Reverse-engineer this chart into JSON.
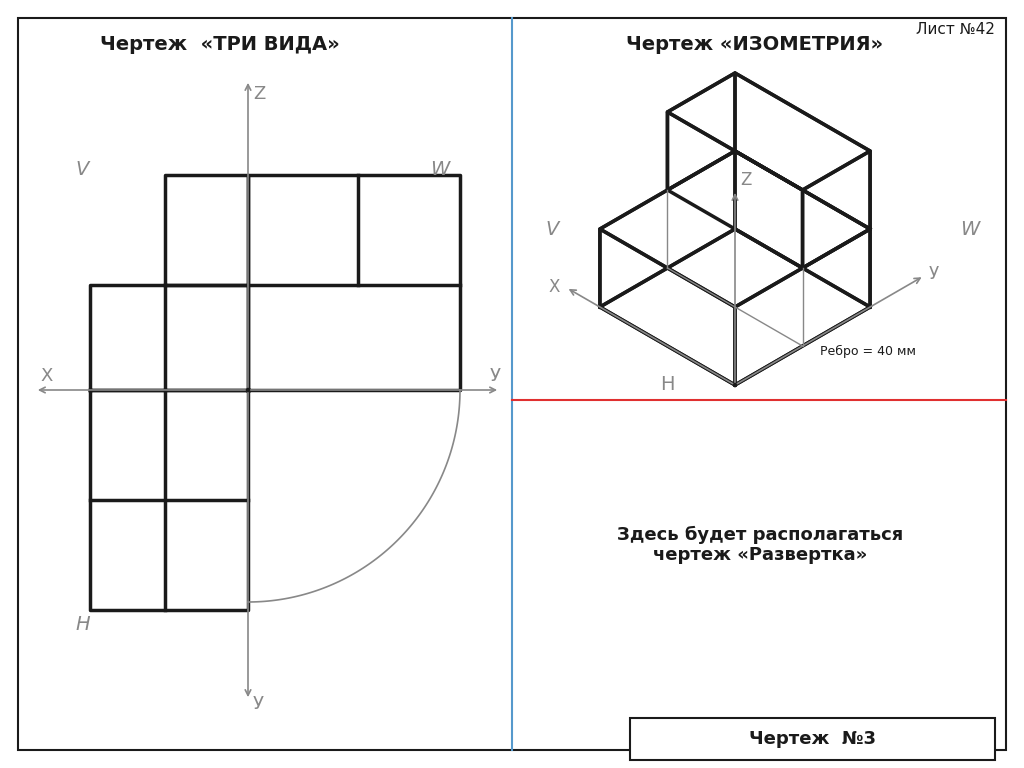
{
  "title_left": "Чертеж  «ТРИ ВИДА»",
  "title_right": "Чертеж «ИЗОМЕТРИЯ»",
  "title_sheet": "Лист №42",
  "label_V_left": "V",
  "label_W_left": "W",
  "label_H_left": "Н",
  "label_X_left": "X",
  "label_Y_left_h": "У",
  "label_Y_left_v": "У",
  "label_Z_left": "Z",
  "label_V_right": "V",
  "label_W_right": "W",
  "label_H_right": "Н",
  "label_X_right": "X",
  "label_Y_right": "У",
  "label_Z_right": "Z",
  "rebro_text": "Ребро = 40 мм",
  "razvortka_text": "Здесь будет располагаться\nчертеж «Развертка»",
  "chertezh_no": "Чертеж  №3",
  "bg_color": "#ffffff",
  "line_color": "#1a1a1a",
  "axis_color": "#888888",
  "red_line_color": "#e03030",
  "blue_line_color": "#aaccff"
}
